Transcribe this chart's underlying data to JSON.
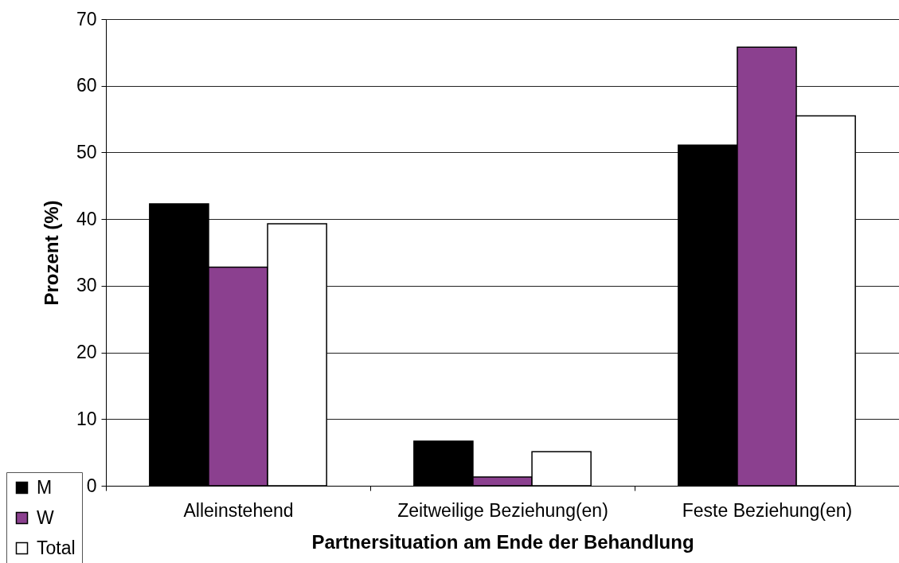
{
  "chart_data": {
    "type": "bar",
    "xlabel": "Partnersituation am Ende der Behandlung",
    "ylabel": "Prozent (%)",
    "categories": [
      "Alleinstehend",
      "Zeitweilige Beziehung(en)",
      "Feste Beziehung(en)"
    ],
    "series": [
      {
        "name": "M",
        "color": "#000000",
        "values": [
          42.3,
          6.7,
          51.1
        ]
      },
      {
        "name": "W",
        "color": "#8b408f",
        "values": [
          32.8,
          1.3,
          65.8
        ]
      },
      {
        "name": "Total",
        "color": "#ffffff",
        "values": [
          39.3,
          5.1,
          55.5
        ]
      }
    ],
    "ylim": [
      0,
      70
    ],
    "yticks": [
      0,
      10,
      20,
      30,
      40,
      50,
      60,
      70
    ],
    "grid": "y",
    "legend": "bottom left"
  }
}
